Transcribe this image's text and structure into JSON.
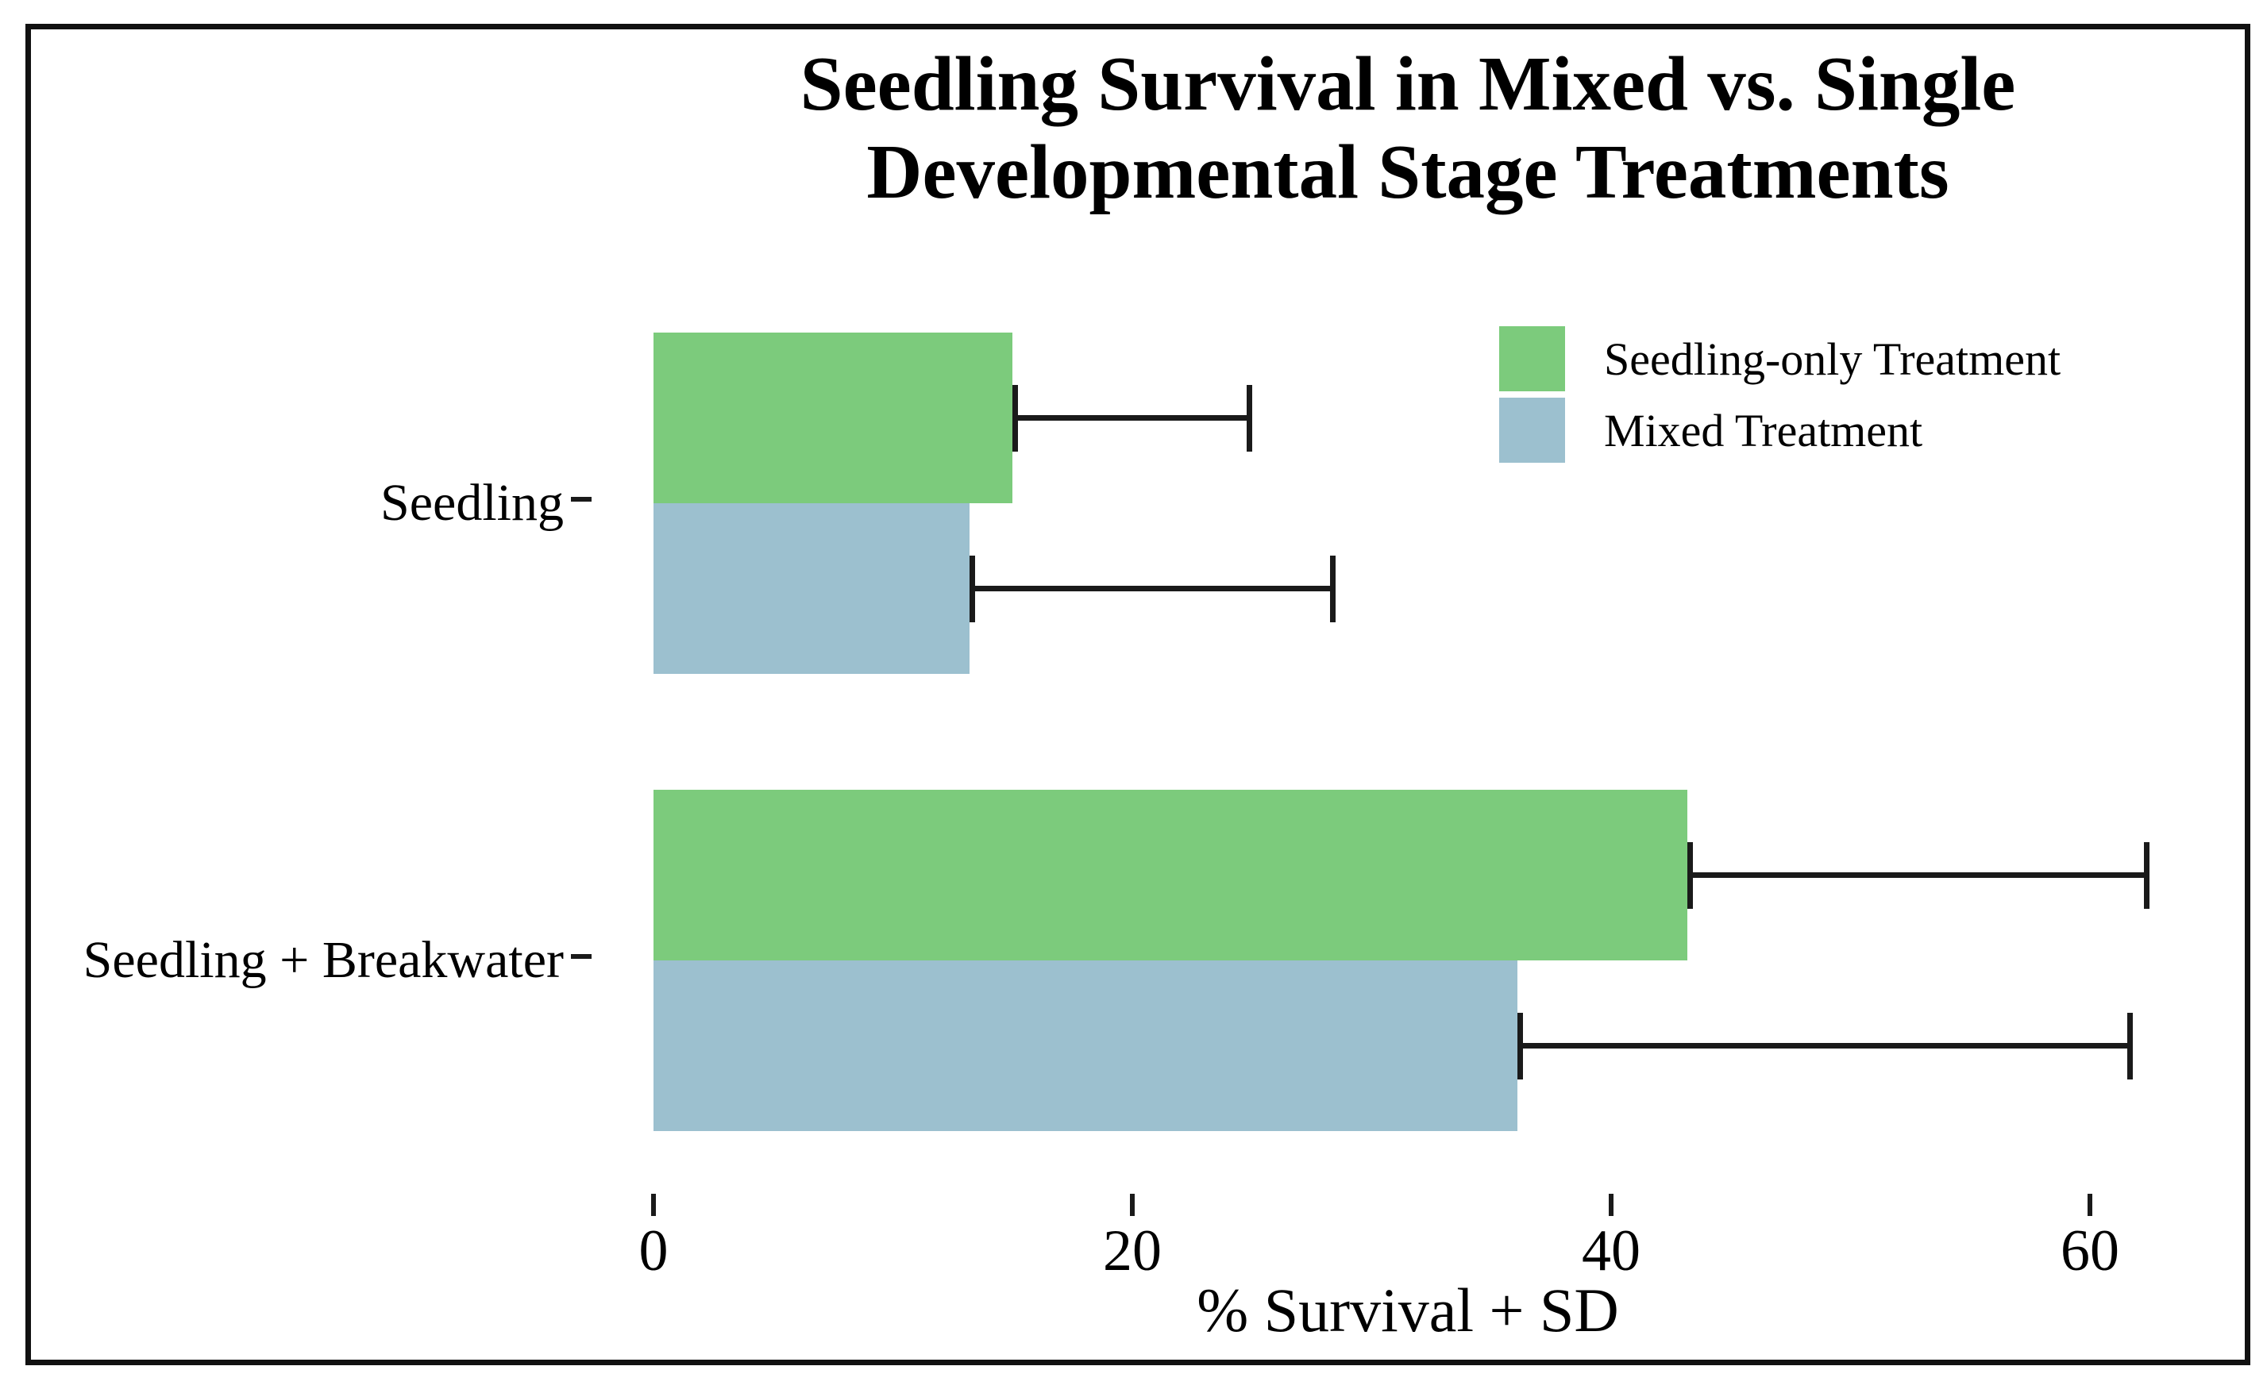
{
  "chart_data": {
    "type": "bar",
    "orientation": "horizontal",
    "title": "Seedling Survival in Mixed vs. Single Developmental Stage Treatments",
    "title_lines": [
      "Seedling Survival in Mixed vs. Single",
      "Developmental Stage Treatments"
    ],
    "categories": [
      "Seedling",
      "Seedling + Breakwater"
    ],
    "series": [
      {
        "name": "Seedling-only Treatment",
        "color": "#7CCB7C",
        "values": [
          15.0,
          43.2
        ],
        "sd": [
          10.0,
          19.3
        ]
      },
      {
        "name": "Mixed Treatment",
        "color": "#9CC0CF",
        "values": [
          13.2,
          36.1
        ],
        "sd": [
          15.3,
          25.7
        ]
      }
    ],
    "xlabel": "% Survival + SD",
    "x_ticks": [
      0,
      20,
      40,
      60
    ],
    "xlim": [
      0,
      63
    ],
    "ylabel": "",
    "error_bars": "mean to mean+SD, caps on both ends",
    "legend_position": "top-right inside panel",
    "grid": "none",
    "background": "#ffffff",
    "border_color": "#111111"
  }
}
